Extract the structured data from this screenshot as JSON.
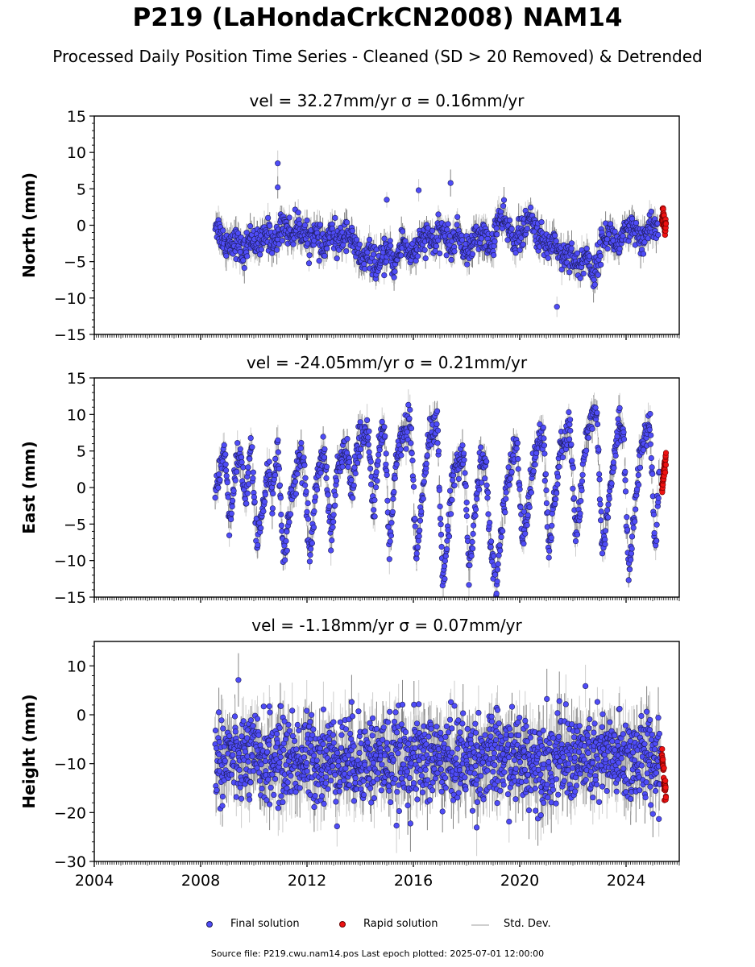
{
  "title": "P219 (LaHondaCrkCN2008) NAM14",
  "subtitle": "Processed Daily Position Time Series - Cleaned (SD > 20 Removed) & Detrended",
  "footer": "Source file: P219.cwu.nam14.pos  Last epoch plotted: 2025-07-01 12:00:00",
  "legend": {
    "final": "Final solution",
    "rapid": "Rapid solution",
    "std": "Std. Dev."
  },
  "colors": {
    "final": "#4f4cf7",
    "final_edge": "#1c1c5a",
    "rapid": "#ee1111",
    "std": "#c8c8c8"
  },
  "chart_data": [
    {
      "type": "scatter",
      "panel": "north",
      "title": "vel = 32.27mm/yr   σ = 0.16mm/yr",
      "ylabel": "North (mm)",
      "xlim": [
        2004,
        2026
      ],
      "ylim": [
        -15,
        15
      ],
      "yticks": [
        -15,
        -10,
        -5,
        0,
        5,
        10,
        15
      ],
      "ytick_labels": [
        "−15",
        "−10",
        "−5",
        "0",
        "5",
        "10",
        "15"
      ],
      "series": [
        {
          "name": "Final solution",
          "x": [
            2008.55,
            2008.9,
            2009.3,
            2009.6,
            2009.9,
            2010.2,
            2010.5,
            2010.8,
            2011.1,
            2011.4,
            2011.7,
            2012.0,
            2012.3,
            2012.6,
            2012.9,
            2013.2,
            2013.5,
            2013.8,
            2014.1,
            2014.4,
            2014.7,
            2015.0,
            2015.3,
            2015.6,
            2015.9,
            2016.2,
            2016.5,
            2016.8,
            2017.1,
            2017.4,
            2017.7,
            2018.0,
            2018.3,
            2018.6,
            2018.9,
            2019.2,
            2019.5,
            2019.8,
            2020.1,
            2020.4,
            2020.7,
            2021.0,
            2021.3,
            2021.6,
            2021.9,
            2022.2,
            2022.5,
            2022.8,
            2023.1,
            2023.4,
            2023.7,
            2024.0,
            2024.3,
            2024.6,
            2024.9,
            2025.2
          ],
          "y": [
            0.5,
            -2.5,
            -2.0,
            -4.0,
            -1.5,
            -3.0,
            -1.0,
            -2.5,
            0.5,
            -1.5,
            0.0,
            -2.0,
            -1.0,
            -3.5,
            -1.0,
            -2.5,
            -0.5,
            -3.0,
            -5.0,
            -4.0,
            -6.0,
            -3.5,
            -5.5,
            -2.0,
            -4.0,
            -3.0,
            -1.5,
            -2.5,
            -0.5,
            -3.0,
            -1.0,
            -4.0,
            -2.0,
            -1.0,
            -3.5,
            1.0,
            0.0,
            -2.0,
            -1.0,
            1.0,
            -1.5,
            -3.0,
            -2.0,
            -4.5,
            -3.5,
            -6.0,
            -4.0,
            -7.0,
            -2.0,
            -1.0,
            -3.0,
            -1.0,
            -0.5,
            -3.0,
            0.5,
            -1.0
          ]
        },
        {
          "name": "Rapid solution",
          "x": [
            2025.35,
            2025.4,
            2025.45,
            2025.5
          ],
          "y": [
            0.5,
            1.5,
            -0.5,
            0.0
          ]
        }
      ],
      "outliers": {
        "x": [
          2010.9,
          2010.9,
          2015.0,
          2016.2,
          2017.4,
          2021.4
        ],
        "y": [
          8.5,
          5.2,
          3.5,
          4.8,
          5.8,
          -11.2
        ]
      }
    },
    {
      "type": "scatter",
      "panel": "east",
      "title": "vel = -24.05mm/yr   σ = 0.21mm/yr",
      "ylabel": "East (mm)",
      "xlim": [
        2004,
        2026
      ],
      "ylim": [
        -15,
        15
      ],
      "yticks": [
        -15,
        -10,
        -5,
        0,
        5,
        10,
        15
      ],
      "ytick_labels": [
        "−15",
        "−10",
        "−5",
        "0",
        "5",
        "10",
        "15"
      ],
      "series": [
        {
          "name": "Final solution",
          "x": [
            2008.55,
            2008.7,
            2008.9,
            2009.1,
            2009.3,
            2009.5,
            2009.7,
            2009.9,
            2010.1,
            2010.3,
            2010.5,
            2010.7,
            2010.9,
            2011.1,
            2011.3,
            2011.5,
            2011.7,
            2011.9,
            2012.1,
            2012.3,
            2012.5,
            2012.7,
            2012.9,
            2013.1,
            2013.3,
            2013.5,
            2013.7,
            2013.9,
            2014.1,
            2014.3,
            2014.5,
            2014.7,
            2014.9,
            2015.1,
            2015.3,
            2015.5,
            2015.7,
            2015.9,
            2016.1,
            2016.3,
            2016.5,
            2016.7,
            2016.9,
            2017.1,
            2017.3,
            2017.5,
            2017.7,
            2017.9,
            2018.1,
            2018.3,
            2018.5,
            2018.7,
            2018.9,
            2019.1,
            2019.3,
            2019.5,
            2019.7,
            2019.9,
            2020.1,
            2020.3,
            2020.5,
            2020.7,
            2020.9,
            2021.1,
            2021.3,
            2021.5,
            2021.7,
            2021.9,
            2022.1,
            2022.3,
            2022.5,
            2022.7,
            2022.9,
            2023.1,
            2023.3,
            2023.5,
            2023.7,
            2023.9,
            2024.1,
            2024.3,
            2024.5,
            2024.7,
            2024.9,
            2025.1,
            2025.25
          ],
          "y": [
            0.0,
            2.0,
            5.0,
            -5.0,
            2.0,
            4.5,
            -2.0,
            6.5,
            -8.0,
            -4.0,
            2.0,
            -1.0,
            6.0,
            -9.0,
            -5.0,
            0.0,
            4.0,
            3.0,
            -9.5,
            -2.0,
            4.5,
            3.0,
            -8.0,
            1.0,
            4.0,
            5.0,
            -1.0,
            6.0,
            7.0,
            8.0,
            -3.0,
            5.0,
            9.0,
            -8.0,
            2.0,
            6.0,
            7.5,
            9.0,
            -10.5,
            -3.0,
            4.0,
            8.0,
            8.5,
            -13.0,
            -6.0,
            2.0,
            4.0,
            4.5,
            -12.0,
            -4.0,
            3.0,
            4.0,
            -8.0,
            -14.0,
            -6.0,
            0.0,
            3.0,
            6.0,
            -7.5,
            -3.0,
            3.0,
            7.0,
            7.5,
            -8.5,
            -2.0,
            4.0,
            6.5,
            8.5,
            -7.0,
            -1.0,
            7.0,
            9.5,
            11.0,
            -8.5,
            -3.0,
            3.0,
            8.0,
            8.5,
            -12.0,
            -4.0,
            3.0,
            7.0,
            8.5,
            -9.0,
            2.0
          ]
        },
        {
          "name": "Rapid solution",
          "x": [
            2025.35,
            2025.4,
            2025.45,
            2025.5
          ],
          "y": [
            -0.5,
            1.5,
            3.0,
            4.0
          ]
        }
      ]
    },
    {
      "type": "scatter",
      "panel": "height",
      "title": "vel = -1.18mm/yr   σ = 0.07mm/yr",
      "ylabel": "Height (mm)",
      "xlim": [
        2004,
        2026
      ],
      "ylim": [
        -30,
        15
      ],
      "yticks": [
        -30,
        -20,
        -10,
        0,
        10
      ],
      "ytick_labels": [
        "−30",
        "−20",
        "−10",
        "0",
        "10"
      ],
      "xticks": [
        2004,
        2008,
        2012,
        2016,
        2020,
        2024
      ],
      "xtick_labels": [
        "2004",
        "2008",
        "2012",
        "2016",
        "2020",
        "2024"
      ],
      "series": [
        {
          "name": "Final solution",
          "x_range": [
            2008.55,
            2025.3
          ],
          "y_center": -9,
          "y_spread": 6
        },
        {
          "name": "Rapid solution",
          "x": [
            2025.35,
            2025.4,
            2025.45,
            2025.5
          ],
          "y": [
            -8.0,
            -12.0,
            -14.5,
            -17.0
          ]
        }
      ]
    }
  ]
}
